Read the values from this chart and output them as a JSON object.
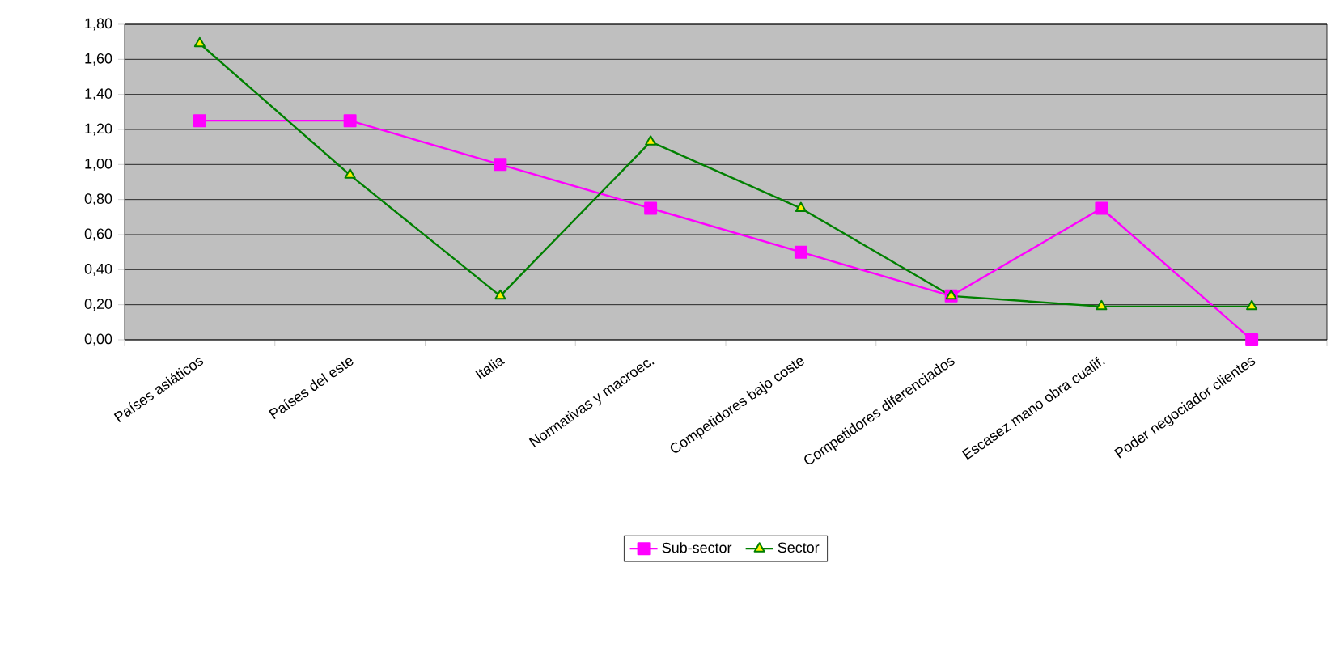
{
  "chart_data": {
    "type": "line",
    "categories": [
      "Países asiáticos",
      "Países del este",
      "Italia",
      "Normativas y macroec.",
      "Competidores bajo coste",
      "Competidores diferenciados",
      "Escasez mano obra cualif.",
      "Poder negociador clientes"
    ],
    "series": [
      {
        "name": "Sub-sector",
        "color": "#ff00ff",
        "marker": "square",
        "values": [
          1.25,
          1.25,
          1.0,
          0.75,
          0.5,
          0.25,
          0.75,
          0.0
        ]
      },
      {
        "name": "Sector",
        "color": "#008000",
        "marker": "triangle",
        "values": [
          1.69,
          0.94,
          0.25,
          1.13,
          0.75,
          0.25,
          0.19,
          0.19
        ]
      }
    ],
    "ylim": [
      0,
      1.8
    ],
    "yticks": [
      {
        "value": 0,
        "label": "0,00"
      },
      {
        "value": 0.2,
        "label": "0,20"
      },
      {
        "value": 0.4,
        "label": "0,40"
      },
      {
        "value": 0.6,
        "label": "0,60"
      },
      {
        "value": 0.8,
        "label": "0,80"
      },
      {
        "value": 1.0,
        "label": "1,00"
      },
      {
        "value": 1.2,
        "label": "1,20"
      },
      {
        "value": 1.4,
        "label": "1,40"
      },
      {
        "value": 1.6,
        "label": "1,60"
      },
      {
        "value": 1.8,
        "label": "1,80"
      }
    ],
    "grid": "y",
    "legend": "bottom",
    "line_style": "solid"
  }
}
